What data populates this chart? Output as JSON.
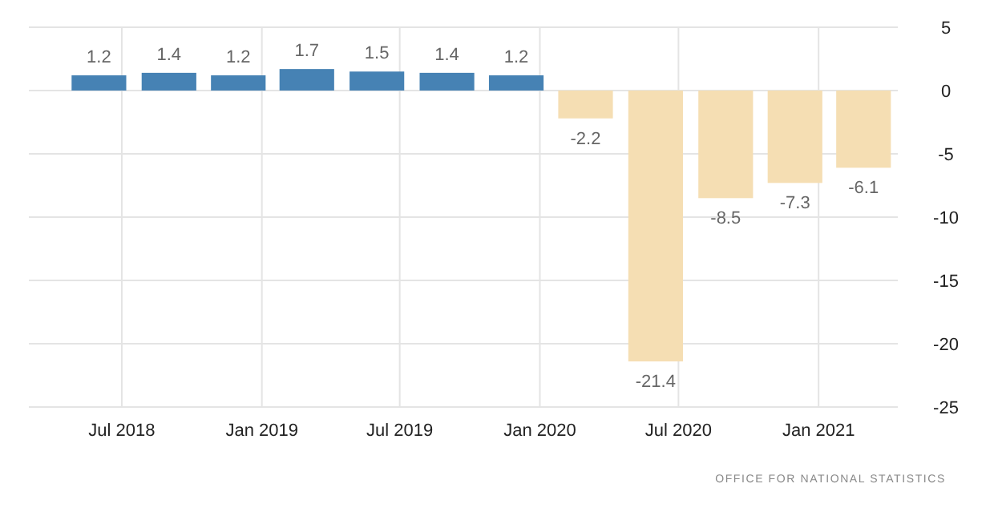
{
  "chart_data": {
    "type": "bar",
    "x": [
      "2018-06-01",
      "2018-09-01",
      "2018-12-01",
      "2019-03-01",
      "2019-06-01",
      "2019-09-01",
      "2019-12-01",
      "2020-03-01",
      "2020-06-01",
      "2020-09-01",
      "2020-12-01",
      "2021-03-01"
    ],
    "values": [
      1.2,
      1.4,
      1.2,
      1.7,
      1.5,
      1.4,
      1.2,
      -2.2,
      -21.4,
      -8.5,
      -7.3,
      -6.1
    ],
    "colors": [
      "#4682b4",
      "#4682b4",
      "#4682b4",
      "#4682b4",
      "#4682b4",
      "#4682b4",
      "#4682b4",
      "#f5deb3",
      "#f5deb3",
      "#f5deb3",
      "#f5deb3",
      "#f5deb3"
    ],
    "data_labels": true,
    "xlim": [
      "2018-03-01",
      "2021-04-15"
    ],
    "xticks": [
      {
        "value": "2018-07-01",
        "label": "Jul 2018"
      },
      {
        "value": "2019-01-01",
        "label": "Jan 2019"
      },
      {
        "value": "2019-07-01",
        "label": "Jul 2019"
      },
      {
        "value": "2020-01-01",
        "label": "Jan 2020"
      },
      {
        "value": "2020-07-01",
        "label": "Jul 2020"
      },
      {
        "value": "2021-01-01",
        "label": "Jan 2021"
      }
    ],
    "ylim": [
      -25,
      5
    ],
    "yticks": [
      5,
      0,
      -5,
      -10,
      -15,
      -20,
      -25
    ],
    "grid": true,
    "annotations": [
      "OFFICE FOR NATIONAL STATISTICS"
    ]
  }
}
